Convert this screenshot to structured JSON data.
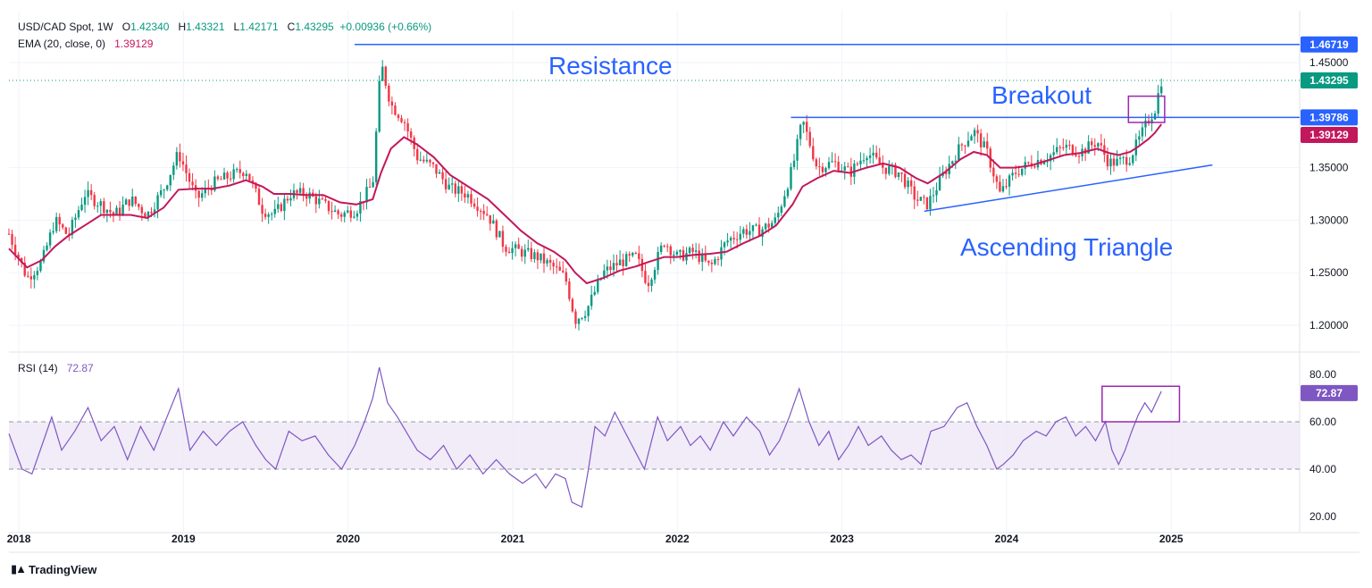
{
  "header": {
    "symbol": "USD/CAD Spot, 1W",
    "open_label": "O",
    "open": "1.42340",
    "high_label": "H",
    "high": "1.43321",
    "low_label": "L",
    "low": "1.42171",
    "close_label": "C",
    "close": "1.43295",
    "change": "+0.00936 (+0.66%)",
    "ema_label": "EMA (20, close, 0)",
    "ema_value": "1.39129",
    "rsi_label": "RSI (14)",
    "rsi_value": "72.87"
  },
  "branding": {
    "logo_text": "TradingView"
  },
  "annotations": {
    "resistance": "Resistance",
    "breakout": "Breakout",
    "triangle": "Ascending Triangle"
  },
  "colors": {
    "up": "#089981",
    "down": "#f23645",
    "ema": "#c2185b",
    "rsi": "#7e57c2",
    "annotation": "#2962ff",
    "box": "#9c27b0",
    "rsi_band": "#ede7f6"
  },
  "chart_data": [
    {
      "type": "candlestick",
      "title": "USD/CAD Spot, 1W",
      "x_ticks": [
        "2018",
        "2019",
        "2020",
        "2021",
        "2022",
        "2023",
        "2024",
        "2025"
      ],
      "y_ticks": [
        "1.20000",
        "1.25000",
        "1.30000",
        "1.35000",
        "1.45000"
      ],
      "ylim": [
        1.18,
        1.485
      ],
      "grid": true,
      "horizontal_lines": [
        {
          "label": "Resistance",
          "value": 1.46719,
          "badge": "1.46719"
        },
        {
          "label": "Breakout",
          "value": 1.39786,
          "badge": "1.39786"
        }
      ],
      "trendline": {
        "label": "Ascending Triangle",
        "from": [
          2023.5,
          1.3085
        ],
        "to": [
          2025.25,
          1.3525
        ]
      },
      "price_badges": {
        "last": "1.43295",
        "ema": "1.39129"
      },
      "close_series_weekly": [
        [
          2017.94,
          1.287
        ],
        [
          2018.05,
          1.245
        ],
        [
          2018.14,
          1.26
        ],
        [
          2018.22,
          1.3
        ],
        [
          2018.3,
          1.285
        ],
        [
          2018.4,
          1.325
        ],
        [
          2018.5,
          1.315
        ],
        [
          2018.58,
          1.305
        ],
        [
          2018.68,
          1.32
        ],
        [
          2018.78,
          1.305
        ],
        [
          2018.88,
          1.33
        ],
        [
          2018.97,
          1.364
        ],
        [
          2019.08,
          1.32
        ],
        [
          2019.18,
          1.335
        ],
        [
          2019.28,
          1.342
        ],
        [
          2019.38,
          1.348
        ],
        [
          2019.48,
          1.31
        ],
        [
          2019.55,
          1.305
        ],
        [
          2019.65,
          1.325
        ],
        [
          2019.75,
          1.325
        ],
        [
          2019.85,
          1.315
        ],
        [
          2019.95,
          1.305
        ],
        [
          2020.05,
          1.31
        ],
        [
          2020.15,
          1.335
        ],
        [
          2020.2,
          1.45
        ],
        [
          2020.26,
          1.41
        ],
        [
          2020.34,
          1.395
        ],
        [
          2020.42,
          1.36
        ],
        [
          2020.52,
          1.35
        ],
        [
          2020.62,
          1.33
        ],
        [
          2020.72,
          1.325
        ],
        [
          2020.85,
          1.305
        ],
        [
          2020.95,
          1.275
        ],
        [
          2021.05,
          1.27
        ],
        [
          2021.15,
          1.265
        ],
        [
          2021.25,
          1.255
        ],
        [
          2021.32,
          1.245
        ],
        [
          2021.38,
          1.205
        ],
        [
          2021.45,
          1.215
        ],
        [
          2021.55,
          1.25
        ],
        [
          2021.65,
          1.26
        ],
        [
          2021.75,
          1.265
        ],
        [
          2021.82,
          1.24
        ],
        [
          2021.92,
          1.28
        ],
        [
          2022.0,
          1.265
        ],
        [
          2022.1,
          1.27
        ],
        [
          2022.2,
          1.255
        ],
        [
          2022.3,
          1.28
        ],
        [
          2022.4,
          1.29
        ],
        [
          2022.5,
          1.29
        ],
        [
          2022.6,
          1.3
        ],
        [
          2022.7,
          1.35
        ],
        [
          2022.76,
          1.395
        ],
        [
          2022.85,
          1.35
        ],
        [
          2022.95,
          1.355
        ],
        [
          2023.05,
          1.345
        ],
        [
          2023.15,
          1.365
        ],
        [
          2023.25,
          1.35
        ],
        [
          2023.35,
          1.345
        ],
        [
          2023.45,
          1.32
        ],
        [
          2023.52,
          1.315
        ],
        [
          2023.62,
          1.345
        ],
        [
          2023.72,
          1.37
        ],
        [
          2023.8,
          1.385
        ],
        [
          2023.88,
          1.365
        ],
        [
          2023.96,
          1.325
        ],
        [
          2024.05,
          1.345
        ],
        [
          2024.15,
          1.355
        ],
        [
          2024.25,
          1.36
        ],
        [
          2024.35,
          1.37
        ],
        [
          2024.45,
          1.365
        ],
        [
          2024.55,
          1.375
        ],
        [
          2024.62,
          1.355
        ],
        [
          2024.68,
          1.355
        ],
        [
          2024.75,
          1.36
        ],
        [
          2024.8,
          1.375
        ],
        [
          2024.86,
          1.395
        ],
        [
          2024.9,
          1.405
        ],
        [
          2024.94,
          1.433
        ]
      ],
      "ema20_weekly": [
        [
          2017.94,
          1.273
        ],
        [
          2018.05,
          1.255
        ],
        [
          2018.14,
          1.262
        ],
        [
          2018.22,
          1.275
        ],
        [
          2018.3,
          1.285
        ],
        [
          2018.4,
          1.295
        ],
        [
          2018.5,
          1.305
        ],
        [
          2018.58,
          1.305
        ],
        [
          2018.68,
          1.305
        ],
        [
          2018.78,
          1.302
        ],
        [
          2018.88,
          1.312
        ],
        [
          2018.97,
          1.329
        ],
        [
          2019.08,
          1.33
        ],
        [
          2019.18,
          1.33
        ],
        [
          2019.28,
          1.333
        ],
        [
          2019.38,
          1.338
        ],
        [
          2019.48,
          1.332
        ],
        [
          2019.55,
          1.325
        ],
        [
          2019.65,
          1.325
        ],
        [
          2019.75,
          1.324
        ],
        [
          2019.85,
          1.324
        ],
        [
          2019.95,
          1.317
        ],
        [
          2020.05,
          1.315
        ],
        [
          2020.15,
          1.32
        ],
        [
          2020.2,
          1.345
        ],
        [
          2020.26,
          1.368
        ],
        [
          2020.34,
          1.379
        ],
        [
          2020.42,
          1.372
        ],
        [
          2020.52,
          1.36
        ],
        [
          2020.62,
          1.343
        ],
        [
          2020.72,
          1.333
        ],
        [
          2020.85,
          1.32
        ],
        [
          2020.95,
          1.305
        ],
        [
          2021.05,
          1.29
        ],
        [
          2021.15,
          1.278
        ],
        [
          2021.25,
          1.27
        ],
        [
          2021.32,
          1.262
        ],
        [
          2021.38,
          1.25
        ],
        [
          2021.45,
          1.24
        ],
        [
          2021.55,
          1.245
        ],
        [
          2021.65,
          1.252
        ],
        [
          2021.75,
          1.256
        ],
        [
          2021.82,
          1.26
        ],
        [
          2021.92,
          1.265
        ],
        [
          2022.0,
          1.265
        ],
        [
          2022.1,
          1.267
        ],
        [
          2022.2,
          1.268
        ],
        [
          2022.3,
          1.27
        ],
        [
          2022.4,
          1.278
        ],
        [
          2022.5,
          1.285
        ],
        [
          2022.6,
          1.295
        ],
        [
          2022.7,
          1.315
        ],
        [
          2022.76,
          1.332
        ],
        [
          2022.85,
          1.34
        ],
        [
          2022.95,
          1.347
        ],
        [
          2023.05,
          1.345
        ],
        [
          2023.15,
          1.35
        ],
        [
          2023.25,
          1.354
        ],
        [
          2023.35,
          1.35
        ],
        [
          2023.45,
          1.34
        ],
        [
          2023.52,
          1.335
        ],
        [
          2023.62,
          1.345
        ],
        [
          2023.72,
          1.358
        ],
        [
          2023.8,
          1.365
        ],
        [
          2023.88,
          1.362
        ],
        [
          2023.96,
          1.35
        ],
        [
          2024.05,
          1.35
        ],
        [
          2024.15,
          1.352
        ],
        [
          2024.25,
          1.357
        ],
        [
          2024.35,
          1.362
        ],
        [
          2024.45,
          1.364
        ],
        [
          2024.55,
          1.368
        ],
        [
          2024.62,
          1.364
        ],
        [
          2024.68,
          1.362
        ],
        [
          2024.75,
          1.365
        ],
        [
          2024.8,
          1.37
        ],
        [
          2024.86,
          1.377
        ],
        [
          2024.9,
          1.383
        ],
        [
          2024.94,
          1.3913
        ]
      ]
    },
    {
      "type": "line",
      "title": "RSI (14)",
      "y_ticks": [
        "20.00",
        "40.00",
        "60.00",
        "80.00"
      ],
      "ylim": [
        15,
        88
      ],
      "band": [
        40,
        60
      ],
      "last_badge": "72.87",
      "series": [
        {
          "name": "RSI (14)",
          "values": [
            [
              2017.94,
              55
            ],
            [
              2018.02,
              40
            ],
            [
              2018.08,
              38
            ],
            [
              2018.14,
              50
            ],
            [
              2018.2,
              62
            ],
            [
              2018.26,
              48
            ],
            [
              2018.34,
              56
            ],
            [
              2018.42,
              66
            ],
            [
              2018.5,
              52
            ],
            [
              2018.58,
              58
            ],
            [
              2018.66,
              44
            ],
            [
              2018.74,
              58
            ],
            [
              2018.82,
              48
            ],
            [
              2018.9,
              62
            ],
            [
              2018.97,
              74
            ],
            [
              2019.04,
              48
            ],
            [
              2019.12,
              56
            ],
            [
              2019.2,
              50
            ],
            [
              2019.28,
              56
            ],
            [
              2019.36,
              60
            ],
            [
              2019.44,
              50
            ],
            [
              2019.5,
              44
            ],
            [
              2019.56,
              40
            ],
            [
              2019.64,
              56
            ],
            [
              2019.72,
              52
            ],
            [
              2019.8,
              54
            ],
            [
              2019.88,
              46
            ],
            [
              2019.96,
              40
            ],
            [
              2020.04,
              50
            ],
            [
              2020.1,
              60
            ],
            [
              2020.15,
              70
            ],
            [
              2020.19,
              83
            ],
            [
              2020.24,
              68
            ],
            [
              2020.3,
              62
            ],
            [
              2020.36,
              55
            ],
            [
              2020.42,
              48
            ],
            [
              2020.5,
              44
            ],
            [
              2020.58,
              50
            ],
            [
              2020.66,
              40
            ],
            [
              2020.74,
              46
            ],
            [
              2020.82,
              38
            ],
            [
              2020.9,
              44
            ],
            [
              2020.98,
              38
            ],
            [
              2021.06,
              34
            ],
            [
              2021.14,
              38
            ],
            [
              2021.2,
              32
            ],
            [
              2021.26,
              38
            ],
            [
              2021.32,
              36
            ],
            [
              2021.36,
              26
            ],
            [
              2021.42,
              24
            ],
            [
              2021.46,
              40
            ],
            [
              2021.5,
              58
            ],
            [
              2021.56,
              54
            ],
            [
              2021.62,
              64
            ],
            [
              2021.68,
              56
            ],
            [
              2021.74,
              48
            ],
            [
              2021.8,
              40
            ],
            [
              2021.88,
              62
            ],
            [
              2021.94,
              52
            ],
            [
              2022.02,
              58
            ],
            [
              2022.08,
              50
            ],
            [
              2022.14,
              54
            ],
            [
              2022.2,
              48
            ],
            [
              2022.28,
              60
            ],
            [
              2022.34,
              54
            ],
            [
              2022.42,
              62
            ],
            [
              2022.5,
              56
            ],
            [
              2022.56,
              46
            ],
            [
              2022.62,
              52
            ],
            [
              2022.68,
              62
            ],
            [
              2022.74,
              74
            ],
            [
              2022.8,
              60
            ],
            [
              2022.86,
              50
            ],
            [
              2022.92,
              56
            ],
            [
              2022.98,
              44
            ],
            [
              2023.04,
              50
            ],
            [
              2023.1,
              58
            ],
            [
              2023.16,
              50
            ],
            [
              2023.24,
              54
            ],
            [
              2023.3,
              48
            ],
            [
              2023.36,
              44
            ],
            [
              2023.42,
              46
            ],
            [
              2023.48,
              42
            ],
            [
              2023.54,
              56
            ],
            [
              2023.62,
              58
            ],
            [
              2023.7,
              66
            ],
            [
              2023.76,
              68
            ],
            [
              2023.82,
              58
            ],
            [
              2023.88,
              50
            ],
            [
              2023.94,
              40
            ],
            [
              2023.98,
              42
            ],
            [
              2024.04,
              46
            ],
            [
              2024.1,
              52
            ],
            [
              2024.18,
              56
            ],
            [
              2024.24,
              54
            ],
            [
              2024.3,
              60
            ],
            [
              2024.36,
              62
            ],
            [
              2024.42,
              54
            ],
            [
              2024.48,
              58
            ],
            [
              2024.54,
              52
            ],
            [
              2024.6,
              60
            ],
            [
              2024.64,
              48
            ],
            [
              2024.68,
              42
            ],
            [
              2024.72,
              48
            ],
            [
              2024.76,
              56
            ],
            [
              2024.8,
              63
            ],
            [
              2024.84,
              68
            ],
            [
              2024.88,
              64
            ],
            [
              2024.92,
              70
            ],
            [
              2024.94,
              72.87
            ]
          ]
        }
      ]
    }
  ]
}
